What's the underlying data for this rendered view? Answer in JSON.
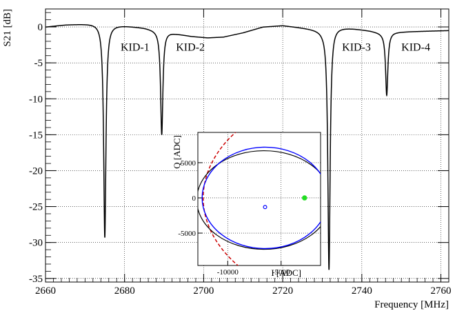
{
  "chart_data": [
    {
      "type": "line",
      "xlabel": "Frequency [MHz]",
      "ylabel": "S21 [dB]",
      "xlim": [
        2660,
        2762
      ],
      "ylim": [
        -35.5,
        2.5
      ],
      "xticks": [
        2660,
        2680,
        2700,
        2720,
        2740,
        2760
      ],
      "yticks": [
        0,
        -5,
        -10,
        -15,
        -20,
        -25,
        -30,
        -35
      ],
      "grid": true,
      "series": [
        {
          "color": "#000000",
          "baseline": [
            [
              2660,
              0.0
            ],
            [
              2665,
              0.3
            ],
            [
              2670,
              0.45
            ],
            [
              2674.6,
              0.6
            ],
            [
              2676,
              0.4
            ],
            [
              2680,
              0.2
            ],
            [
              2685,
              -0.1
            ],
            [
              2689.0,
              -0.5
            ],
            [
              2690,
              -0.5
            ],
            [
              2693,
              -0.9
            ],
            [
              2697,
              -1.3
            ],
            [
              2701,
              -1.5
            ],
            [
              2705,
              -1.4
            ],
            [
              2710,
              -0.8
            ],
            [
              2715,
              0.0
            ],
            [
              2720,
              0.2
            ],
            [
              2725,
              -0.1
            ],
            [
              2730,
              -0.4
            ],
            [
              2731.8,
              -0.2
            ],
            [
              2733,
              0.1
            ],
            [
              2738,
              -0.2
            ],
            [
              2742,
              -0.5
            ],
            [
              2745,
              -0.8
            ],
            [
              2746.3,
              -0.8
            ],
            [
              2748,
              -0.7
            ],
            [
              2755,
              -0.6
            ],
            [
              2762,
              -0.5
            ]
          ],
          "dips": [
            {
              "f0": 2675.0,
              "min": -29.3,
              "width": 0.35
            },
            {
              "f0": 2689.4,
              "min": -15.0,
              "width": 0.35
            },
            {
              "f0": 2731.7,
              "min": -33.8,
              "width": 0.35
            },
            {
              "f0": 2746.3,
              "min": -9.5,
              "width": 0.35
            }
          ]
        }
      ],
      "annotations": [
        {
          "text": "KID-1",
          "x": 2679,
          "y": -3.3
        },
        {
          "text": "KID-2",
          "x": 2693,
          "y": -3.3
        },
        {
          "text": "KID-3",
          "x": 2735,
          "y": -3.3
        },
        {
          "text": "KID-4",
          "x": 2750,
          "y": -3.3
        }
      ]
    },
    {
      "type": "scatter",
      "xlabel": "I [ADC]",
      "ylabel": "Q [ADC]",
      "xlim": [
        -12800,
        -1300
      ],
      "ylim": [
        -9600,
        9300
      ],
      "xticks": [
        -10000,
        -5000
      ],
      "yticks": [
        5000,
        0,
        -5000
      ],
      "grid": true,
      "resonance_circle": {
        "cx": -6500,
        "cy": 0,
        "rx": 5900,
        "ry": 7200,
        "color": "#0000ff"
      },
      "data_loop": {
        "cx": -6600,
        "cy": -300,
        "rx": 6300,
        "ry": 7000,
        "color": "#000000"
      },
      "fit_circle": {
        "cx": 3500,
        "cy": 0,
        "r": 15800,
        "color": "#cc0000",
        "dashed": true
      },
      "center_point": {
        "x": -6500,
        "y": -1300,
        "color": "#0000ff"
      },
      "resonance_point": {
        "x": -2800,
        "y": 0,
        "color": "#22dd22"
      }
    }
  ]
}
